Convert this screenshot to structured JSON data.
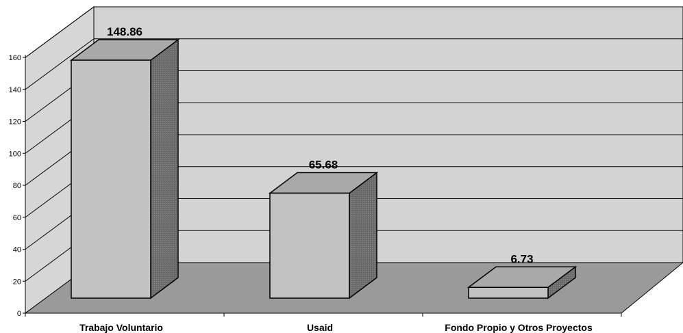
{
  "chart_data": {
    "type": "bar",
    "categories": [
      "Trabajo Voluntario",
      "Usaid",
      "Fondo Propio y Otros Proyectos"
    ],
    "values": [
      148.86,
      65.68,
      6.73
    ],
    "data_labels": [
      "148.86",
      "65.68",
      "6.73"
    ],
    "ylim": [
      0,
      160
    ],
    "yticks": [
      "0",
      "20",
      "40",
      "60",
      "80",
      "100",
      "120",
      "140",
      "160"
    ],
    "grid": true,
    "style": "3d",
    "colors": {
      "wall": "#d3d3d3",
      "floor": "#9a9a9a",
      "bar_front": "#c2c2c2",
      "bar_top": "#a9a9a9",
      "bar_side": "#707070"
    }
  }
}
